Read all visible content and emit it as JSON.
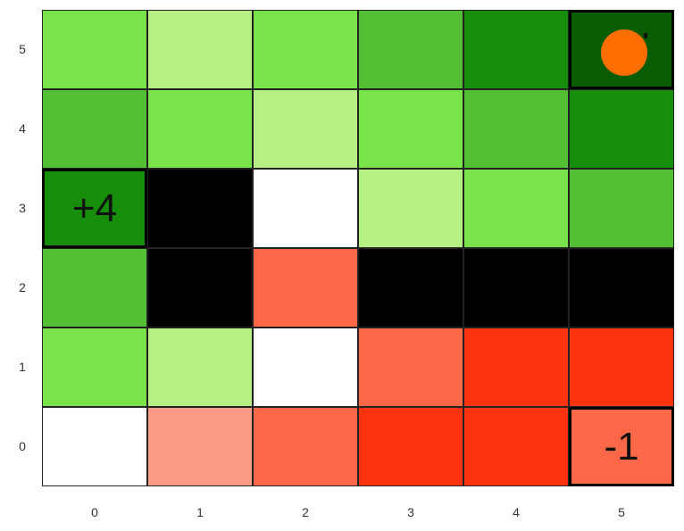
{
  "grid": {
    "cols": 6,
    "rows": 6,
    "x_ticks": [
      "0",
      "1",
      "2",
      "3",
      "4",
      "5"
    ],
    "y_ticks": [
      "0",
      "1",
      "2",
      "3",
      "4",
      "5"
    ],
    "cells": [
      {
        "col": 0,
        "row": 5,
        "color": "#78e44a"
      },
      {
        "col": 1,
        "row": 5,
        "color": "#b6ef84"
      },
      {
        "col": 2,
        "row": 5,
        "color": "#78e44a"
      },
      {
        "col": 3,
        "row": 5,
        "color": "#52bf35"
      },
      {
        "col": 4,
        "row": 5,
        "color": "#168e0a"
      },
      {
        "col": 5,
        "row": 5,
        "color": "#0a5c02",
        "terminal": true
      },
      {
        "col": 0,
        "row": 4,
        "color": "#52bf35"
      },
      {
        "col": 1,
        "row": 4,
        "color": "#78e44a"
      },
      {
        "col": 2,
        "row": 4,
        "color": "#b6ef84"
      },
      {
        "col": 3,
        "row": 4,
        "color": "#78e44a"
      },
      {
        "col": 4,
        "row": 4,
        "color": "#52bf35"
      },
      {
        "col": 5,
        "row": 4,
        "color": "#168e0a"
      },
      {
        "col": 0,
        "row": 3,
        "color": "#168e0a",
        "terminal": true,
        "label": "+4"
      },
      {
        "col": 1,
        "row": 3,
        "color": "#000000",
        "wall": true
      },
      {
        "col": 2,
        "row": 3,
        "color": "#ffffff"
      },
      {
        "col": 3,
        "row": 3,
        "color": "#b6ef84"
      },
      {
        "col": 4,
        "row": 3,
        "color": "#78e44a"
      },
      {
        "col": 5,
        "row": 3,
        "color": "#52bf35"
      },
      {
        "col": 0,
        "row": 2,
        "color": "#52bf35"
      },
      {
        "col": 1,
        "row": 2,
        "color": "#000000",
        "wall": true
      },
      {
        "col": 2,
        "row": 2,
        "color": "#fd6848"
      },
      {
        "col": 3,
        "row": 2,
        "color": "#000000",
        "wall": true
      },
      {
        "col": 4,
        "row": 2,
        "color": "#000000",
        "wall": true
      },
      {
        "col": 5,
        "row": 2,
        "color": "#000000",
        "wall": true
      },
      {
        "col": 0,
        "row": 1,
        "color": "#78e44a"
      },
      {
        "col": 1,
        "row": 1,
        "color": "#b6ef84"
      },
      {
        "col": 2,
        "row": 1,
        "color": "#ffffff"
      },
      {
        "col": 3,
        "row": 1,
        "color": "#fd6848"
      },
      {
        "col": 4,
        "row": 1,
        "color": "#fd3210"
      },
      {
        "col": 5,
        "row": 1,
        "color": "#fd3210"
      },
      {
        "col": 0,
        "row": 0,
        "color": "#ffffff"
      },
      {
        "col": 1,
        "row": 0,
        "color": "#fd9c86"
      },
      {
        "col": 2,
        "row": 0,
        "color": "#fd6848"
      },
      {
        "col": 3,
        "row": 0,
        "color": "#fd3210"
      },
      {
        "col": 4,
        "row": 0,
        "color": "#fd3210"
      },
      {
        "col": 5,
        "row": 0,
        "color": "#fd6848",
        "terminal": true,
        "label": "-1"
      }
    ]
  },
  "agent": {
    "col": 5,
    "row": 5,
    "color": "#ff6e00"
  }
}
